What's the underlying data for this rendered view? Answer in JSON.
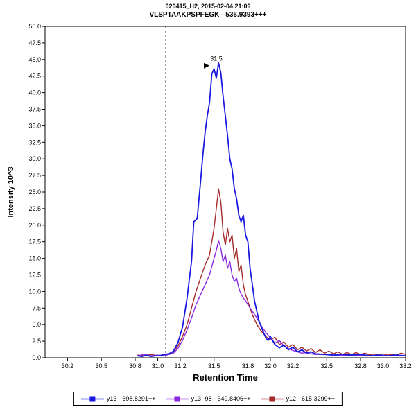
{
  "header": {
    "line1": "020415_H2, 2015-02-04 21:09",
    "line2": "VLSPTAAKPSPFEGK - 536.9393+++"
  },
  "axes": {
    "x": {
      "label": "Retention Time",
      "ticks": [
        "30.2",
        "30.5",
        "30.8",
        "31.0",
        "31.2",
        "31.5",
        "31.8",
        "32.0",
        "32.2",
        "32.5",
        "32.8",
        "33.0",
        "33.2"
      ]
    },
    "y": {
      "label": "Intensity 10^3",
      "ticks": [
        "0.0",
        "2.5",
        "5.0",
        "7.5",
        "10.0",
        "12.5",
        "15.0",
        "17.5",
        "20.0",
        "22.5",
        "25.0",
        "27.5",
        "30.0",
        "32.5",
        "35.0",
        "37.5",
        "40.0",
        "42.5",
        "45.0",
        "47.5",
        "50.0"
      ]
    }
  },
  "colors": {
    "boundary": "#606060",
    "peak_label": "#3333CC",
    "arrow": "#000000",
    "axis": "#000000"
  },
  "legend": [
    {
      "id": "y13",
      "label": "y13 - 698.8291++",
      "color": "#1818E0"
    },
    {
      "id": "y13_98",
      "label": "y13 -98 - 649.8406++",
      "color": "#8A2BE2"
    },
    {
      "id": "y12",
      "label": "y12 - 615.3299++",
      "color": "#A52A2A"
    }
  ],
  "chart_data": {
    "type": "line",
    "title": "VLSPTAAKPSPFEGK - 536.9393+++",
    "subtitle": "020415_H2, 2015-02-04 21:09",
    "xlabel": "Retention Time",
    "ylabel": "Intensity 10^3",
    "xlim": [
      30.0,
      33.2
    ],
    "ylim": [
      0,
      50
    ],
    "grid": false,
    "legend_position": "bottom",
    "integration_boundaries": [
      31.07,
      32.12
    ],
    "peak_label": {
      "x": 31.52,
      "y": 44.8,
      "text": "31.5"
    },
    "series": [
      {
        "id": "y13",
        "name": "y13 - 698.8291++",
        "color": "#1818E0",
        "width": 1.8,
        "peak_rt": 31.54,
        "peak_height": 44.5,
        "points": [
          [
            30.82,
            0.3
          ],
          [
            30.86,
            0.2
          ],
          [
            30.9,
            0.4
          ],
          [
            30.94,
            0.2
          ],
          [
            30.98,
            0.3
          ],
          [
            31.02,
            0.3
          ],
          [
            31.06,
            0.5
          ],
          [
            31.1,
            0.6
          ],
          [
            31.14,
            1.0
          ],
          [
            31.18,
            2.3
          ],
          [
            31.22,
            4.6
          ],
          [
            31.26,
            9.0
          ],
          [
            31.3,
            14.5
          ],
          [
            31.32,
            20.5
          ],
          [
            31.35,
            21.0
          ],
          [
            31.38,
            26.5
          ],
          [
            31.4,
            30.5
          ],
          [
            31.42,
            34.0
          ],
          [
            31.44,
            36.5
          ],
          [
            31.46,
            38.5
          ],
          [
            31.48,
            42.8
          ],
          [
            31.5,
            43.6
          ],
          [
            31.52,
            42.2
          ],
          [
            31.54,
            44.5
          ],
          [
            31.56,
            43.0
          ],
          [
            31.58,
            39.5
          ],
          [
            31.6,
            36.5
          ],
          [
            31.62,
            33.5
          ],
          [
            31.64,
            30.0
          ],
          [
            31.66,
            28.5
          ],
          [
            31.68,
            25.5
          ],
          [
            31.7,
            24.0
          ],
          [
            31.72,
            21.5
          ],
          [
            31.74,
            20.5
          ],
          [
            31.76,
            21.5
          ],
          [
            31.78,
            18.5
          ],
          [
            31.8,
            17.5
          ],
          [
            31.82,
            13.5
          ],
          [
            31.84,
            11.0
          ],
          [
            31.86,
            8.5
          ],
          [
            31.88,
            7.0
          ],
          [
            31.9,
            5.5
          ],
          [
            31.92,
            4.6
          ],
          [
            31.94,
            3.8
          ],
          [
            31.96,
            3.0
          ],
          [
            31.98,
            2.6
          ],
          [
            32.0,
            3.2
          ],
          [
            32.04,
            2.0
          ],
          [
            32.08,
            1.5
          ],
          [
            32.12,
            1.9
          ],
          [
            32.16,
            1.2
          ],
          [
            32.2,
            1.6
          ],
          [
            32.24,
            0.9
          ],
          [
            32.28,
            1.2
          ],
          [
            32.32,
            0.7
          ],
          [
            32.36,
            0.9
          ],
          [
            32.4,
            0.6
          ],
          [
            32.48,
            0.5
          ],
          [
            32.56,
            0.4
          ],
          [
            32.64,
            0.5
          ],
          [
            32.72,
            0.4
          ],
          [
            32.8,
            0.5
          ],
          [
            32.88,
            0.3
          ],
          [
            32.96,
            0.4
          ],
          [
            33.04,
            0.3
          ],
          [
            33.12,
            0.4
          ],
          [
            33.2,
            0.3
          ]
        ]
      },
      {
        "id": "y13_98",
        "name": "y13 -98 - 649.8406++",
        "color": "#8A2BE2",
        "width": 1.4,
        "peak_rt": 31.54,
        "peak_height": 17.7,
        "points": [
          [
            30.82,
            0.3
          ],
          [
            30.88,
            0.5
          ],
          [
            30.94,
            0.3
          ],
          [
            31.0,
            0.4
          ],
          [
            31.06,
            0.3
          ],
          [
            31.1,
            0.5
          ],
          [
            31.14,
            0.7
          ],
          [
            31.18,
            1.4
          ],
          [
            31.22,
            2.6
          ],
          [
            31.26,
            4.2
          ],
          [
            31.3,
            6.0
          ],
          [
            31.34,
            8.0
          ],
          [
            31.38,
            9.5
          ],
          [
            31.42,
            11.0
          ],
          [
            31.46,
            12.5
          ],
          [
            31.5,
            15.0
          ],
          [
            31.52,
            16.2
          ],
          [
            31.54,
            17.7
          ],
          [
            31.56,
            16.5
          ],
          [
            31.58,
            14.5
          ],
          [
            31.6,
            15.5
          ],
          [
            31.62,
            13.5
          ],
          [
            31.64,
            14.5
          ],
          [
            31.66,
            12.5
          ],
          [
            31.68,
            11.5
          ],
          [
            31.7,
            12.0
          ],
          [
            31.72,
            10.5
          ],
          [
            31.74,
            9.6
          ],
          [
            31.76,
            9.0
          ],
          [
            31.78,
            8.6
          ],
          [
            31.8,
            8.0
          ],
          [
            31.84,
            7.0
          ],
          [
            31.88,
            6.0
          ],
          [
            31.92,
            4.8
          ],
          [
            31.96,
            3.8
          ],
          [
            32.0,
            3.0
          ],
          [
            32.04,
            2.2
          ],
          [
            32.08,
            2.6
          ],
          [
            32.12,
            1.8
          ],
          [
            32.16,
            1.4
          ],
          [
            32.2,
            1.1
          ],
          [
            32.24,
            0.9
          ],
          [
            32.28,
            0.7
          ],
          [
            32.32,
            0.8
          ],
          [
            32.36,
            0.6
          ],
          [
            32.4,
            0.5
          ],
          [
            32.48,
            0.5
          ],
          [
            32.56,
            0.4
          ],
          [
            32.64,
            0.4
          ],
          [
            32.72,
            0.3
          ],
          [
            32.8,
            0.4
          ],
          [
            32.88,
            0.3
          ],
          [
            32.96,
            0.4
          ],
          [
            33.04,
            0.3
          ],
          [
            33.12,
            0.3
          ],
          [
            33.2,
            0.3
          ]
        ]
      },
      {
        "id": "y12",
        "name": "y12 - 615.3299++",
        "color": "#A52A2A",
        "width": 1.4,
        "peak_rt": 31.54,
        "peak_height": 25.5,
        "points": [
          [
            30.82,
            0.4
          ],
          [
            30.88,
            0.3
          ],
          [
            30.94,
            0.5
          ],
          [
            31.0,
            0.3
          ],
          [
            31.06,
            0.5
          ],
          [
            31.1,
            0.6
          ],
          [
            31.14,
            0.9
          ],
          [
            31.18,
            1.8
          ],
          [
            31.22,
            3.2
          ],
          [
            31.26,
            5.0
          ],
          [
            31.3,
            7.5
          ],
          [
            31.34,
            10.0
          ],
          [
            31.38,
            12.0
          ],
          [
            31.42,
            14.0
          ],
          [
            31.46,
            15.5
          ],
          [
            31.5,
            19.5
          ],
          [
            31.52,
            22.5
          ],
          [
            31.54,
            25.5
          ],
          [
            31.56,
            23.5
          ],
          [
            31.58,
            19.0
          ],
          [
            31.6,
            17.0
          ],
          [
            31.62,
            19.5
          ],
          [
            31.64,
            17.5
          ],
          [
            31.66,
            18.5
          ],
          [
            31.68,
            15.0
          ],
          [
            31.7,
            16.5
          ],
          [
            31.72,
            13.0
          ],
          [
            31.74,
            14.0
          ],
          [
            31.76,
            11.0
          ],
          [
            31.78,
            9.5
          ],
          [
            31.8,
            8.5
          ],
          [
            31.84,
            6.5
          ],
          [
            31.88,
            5.0
          ],
          [
            31.92,
            4.0
          ],
          [
            31.96,
            3.2
          ],
          [
            32.0,
            2.7
          ],
          [
            32.04,
            3.1
          ],
          [
            32.08,
            2.0
          ],
          [
            32.12,
            2.4
          ],
          [
            32.16,
            1.6
          ],
          [
            32.2,
            2.0
          ],
          [
            32.24,
            1.2
          ],
          [
            32.28,
            1.6
          ],
          [
            32.32,
            1.0
          ],
          [
            32.36,
            1.4
          ],
          [
            32.4,
            0.8
          ],
          [
            32.44,
            1.2
          ],
          [
            32.48,
            0.7
          ],
          [
            32.52,
            1.0
          ],
          [
            32.56,
            0.6
          ],
          [
            32.6,
            0.9
          ],
          [
            32.64,
            0.5
          ],
          [
            32.68,
            0.8
          ],
          [
            32.72,
            0.5
          ],
          [
            32.76,
            0.8
          ],
          [
            32.8,
            0.5
          ],
          [
            32.84,
            0.7
          ],
          [
            32.88,
            0.4
          ],
          [
            32.92,
            0.6
          ],
          [
            32.96,
            0.4
          ],
          [
            33.0,
            0.6
          ],
          [
            33.04,
            0.4
          ],
          [
            33.08,
            0.5
          ],
          [
            33.12,
            0.4
          ],
          [
            33.16,
            0.7
          ],
          [
            33.2,
            0.5
          ]
        ]
      }
    ]
  }
}
